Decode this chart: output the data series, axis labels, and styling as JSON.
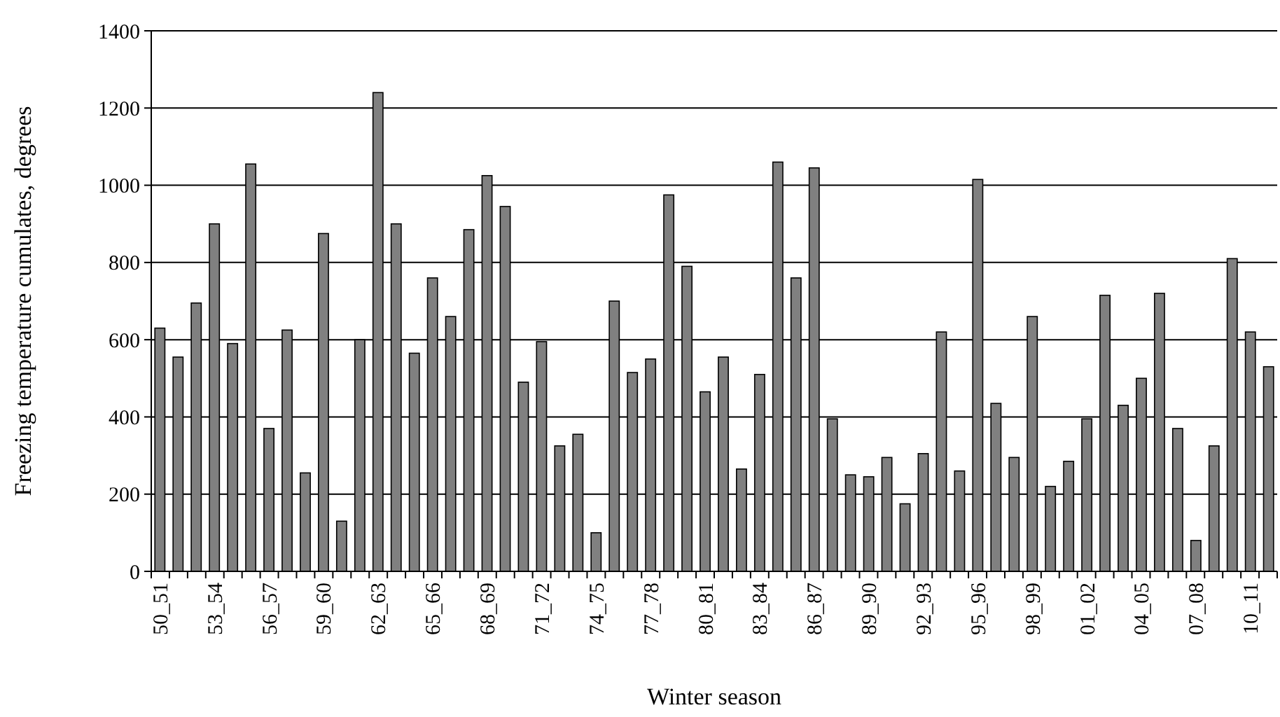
{
  "chart_data": {
    "type": "bar",
    "xlabel": "Winter season",
    "ylabel": "Freezing temperature cumulates, degrees",
    "categories": [
      "50_51",
      null,
      null,
      "53_54",
      null,
      null,
      "56_57",
      null,
      null,
      "59_60",
      null,
      null,
      "62_63",
      null,
      null,
      "65_66",
      null,
      null,
      "68_69",
      null,
      null,
      "71_72",
      null,
      null,
      "74_75",
      null,
      null,
      "77_78",
      null,
      null,
      "80_81",
      null,
      null,
      "83_84",
      null,
      null,
      "86_87",
      null,
      null,
      "89_90",
      null,
      null,
      "92_93",
      null,
      null,
      "95_96",
      null,
      null,
      "98_99",
      null,
      null,
      "01_02",
      null,
      null,
      "04_05",
      null,
      null,
      "07_08",
      null,
      null,
      "10_11",
      null
    ],
    "values": [
      630,
      555,
      695,
      900,
      590,
      1055,
      370,
      625,
      255,
      875,
      130,
      600,
      1240,
      900,
      565,
      760,
      660,
      885,
      1025,
      945,
      490,
      595,
      325,
      355,
      100,
      700,
      515,
      550,
      975,
      790,
      465,
      555,
      265,
      510,
      1060,
      760,
      1045,
      395,
      250,
      245,
      295,
      175,
      305,
      620,
      260,
      1015,
      435,
      295,
      660,
      220,
      285,
      395,
      715,
      430,
      500,
      720,
      370,
      80,
      325,
      810,
      620,
      530
    ],
    "color": "#808080",
    "ylim": [
      0,
      1400
    ],
    "yticks": [
      0,
      200,
      400,
      600,
      800,
      1000,
      1200,
      1400
    ],
    "grid": "y"
  }
}
